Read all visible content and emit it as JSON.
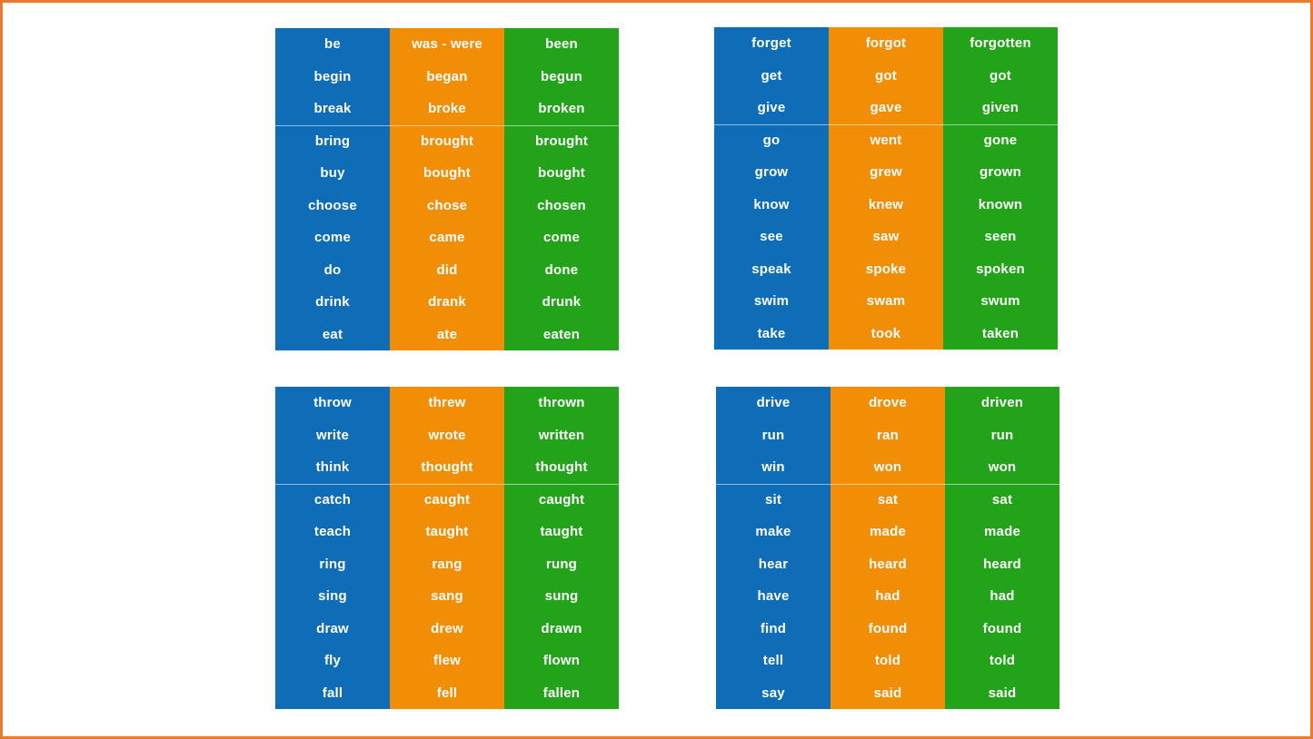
{
  "colors": {
    "base": "#0f6db7",
    "past": "#f18e06",
    "participle": "#22a319",
    "border": "#e97a30"
  },
  "tables": [
    {
      "columns": [
        [
          "be",
          "begin",
          "break",
          "bring",
          "buy",
          "choose",
          "come",
          "do",
          "drink",
          "eat"
        ],
        [
          "was - were",
          "began",
          "broke",
          "brought",
          "bought",
          "chose",
          "came",
          "did",
          "drank",
          "ate"
        ],
        [
          "been",
          "begun",
          "broken",
          "brought",
          "bought",
          "chosen",
          "come",
          "done",
          "drunk",
          "eaten"
        ]
      ]
    },
    {
      "columns": [
        [
          "forget",
          "get",
          "give",
          "go",
          "grow",
          "know",
          "see",
          "speak",
          "swim",
          "take"
        ],
        [
          "forgot",
          "got",
          "gave",
          "went",
          "grew",
          "knew",
          "saw",
          "spoke",
          "swam",
          "took"
        ],
        [
          "forgotten",
          "got",
          "given",
          "gone",
          "grown",
          "known",
          "seen",
          "spoken",
          "swum",
          "taken"
        ]
      ]
    },
    {
      "columns": [
        [
          "throw",
          "write",
          "think",
          "catch",
          "teach",
          "ring",
          "sing",
          "draw",
          "fly",
          "fall"
        ],
        [
          "threw",
          "wrote",
          "thought",
          "caught",
          "taught",
          "rang",
          "sang",
          "drew",
          "flew",
          "fell"
        ],
        [
          "thrown",
          "written",
          "thought",
          "caught",
          "taught",
          "rung",
          "sung",
          "drawn",
          "flown",
          "fallen"
        ]
      ]
    },
    {
      "columns": [
        [
          "drive",
          "run",
          "win",
          "sit",
          "make",
          "hear",
          "have",
          "find",
          "tell",
          "say"
        ],
        [
          "drove",
          "ran",
          "won",
          "sat",
          "made",
          "heard",
          "had",
          "found",
          "told",
          "said"
        ],
        [
          "driven",
          "run",
          "won",
          "sat",
          "made",
          "heard",
          "had",
          "found",
          "told",
          "said"
        ]
      ]
    }
  ]
}
